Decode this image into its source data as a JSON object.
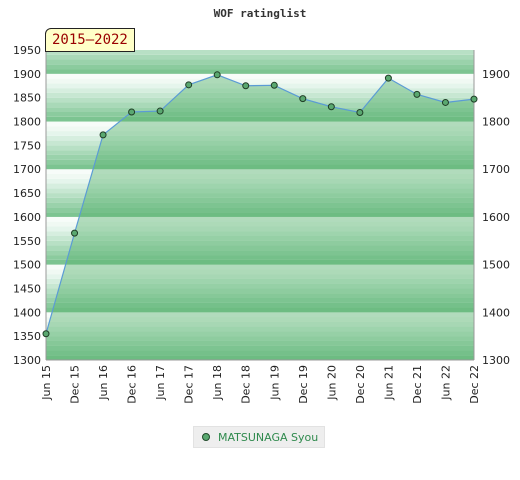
{
  "chart_data": {
    "type": "area",
    "title": "WOF ratinglist",
    "period": "2015–2022",
    "x": [
      "Jun 15",
      "Dec 15",
      "Jun 16",
      "Dec 16",
      "Jun 17",
      "Dec 17",
      "Jun 18",
      "Dec 18",
      "Jun 19",
      "Dec 19",
      "Jun 20",
      "Dec 20",
      "Jun 21",
      "Dec 21",
      "Jun 22",
      "Dec 22"
    ],
    "series": [
      {
        "name": "MATSUNAGA Syou",
        "values": [
          1355,
          1566,
          1772,
          1820,
          1822,
          1877,
          1898,
          1875,
          1876,
          1848,
          1831,
          1819,
          1891,
          1857,
          1840,
          1847
        ]
      }
    ],
    "ylim": [
      1300,
      1950
    ],
    "yticks_left": [
      1300,
      1350,
      1400,
      1450,
      1500,
      1550,
      1600,
      1650,
      1700,
      1750,
      1800,
      1850,
      1900,
      1950
    ],
    "yticks_right": [
      1300,
      1400,
      1500,
      1600,
      1700,
      1800,
      1900
    ],
    "legend_position": "bottom",
    "grid": true,
    "colors": {
      "line": "#5b9bd5",
      "fill": "#5ab472",
      "marker": "#5aa870",
      "band_dark": "#7cc491",
      "band_light": "#e8f5ea"
    }
  }
}
